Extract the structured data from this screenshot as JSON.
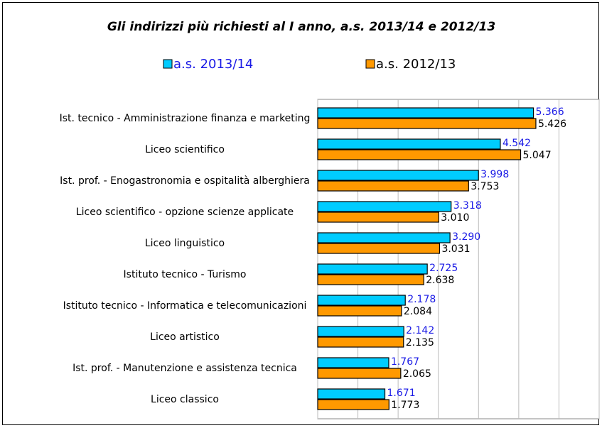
{
  "chart_data": {
    "type": "bar",
    "orientation": "horizontal",
    "title": "Gli indirizzi più richiesti al I anno, a.s. 2013/14 e 2012/13",
    "categories": [
      "Ist. tecnico - Amministrazione finanza e marketing",
      "Liceo scientifico",
      "Ist. prof. - Enogastronomia e ospitalità alberghiera",
      "Liceo scientifico - opzione scienze applicate",
      "Liceo linguistico",
      "Istituto tecnico - Turismo",
      "Istituto tecnico - Informatica e telecomunicazioni",
      "Liceo artistico",
      "Ist. prof. - Manutenzione e assistenza tecnica",
      "Liceo classico"
    ],
    "series": [
      {
        "name": "a.s. 2013/14",
        "color": "#00ccff",
        "label_color": "#1a1ae6",
        "values": [
          5366,
          4542,
          3998,
          3318,
          3290,
          2725,
          2178,
          2142,
          1767,
          1671
        ],
        "value_labels": [
          "5.366",
          "4.542",
          "3.998",
          "3.318",
          "3.290",
          "2.725",
          "2.178",
          "2.142",
          "1.767",
          "1.671"
        ]
      },
      {
        "name": "a.s. 2012/13",
        "color": "#ff9900",
        "label_color": "#000000",
        "values": [
          5426,
          5047,
          3753,
          3010,
          3031,
          2638,
          2084,
          2135,
          2065,
          1773
        ],
        "value_labels": [
          "5.426",
          "5.047",
          "3.753",
          "3.010",
          "3.031",
          "2.638",
          "2.084",
          "2.135",
          "2.065",
          "1.773"
        ]
      }
    ],
    "xlim": [
      0,
      7000
    ],
    "xticks": [
      0,
      1000,
      2000,
      3000,
      4000,
      5000,
      6000,
      7000
    ],
    "grid": true
  }
}
